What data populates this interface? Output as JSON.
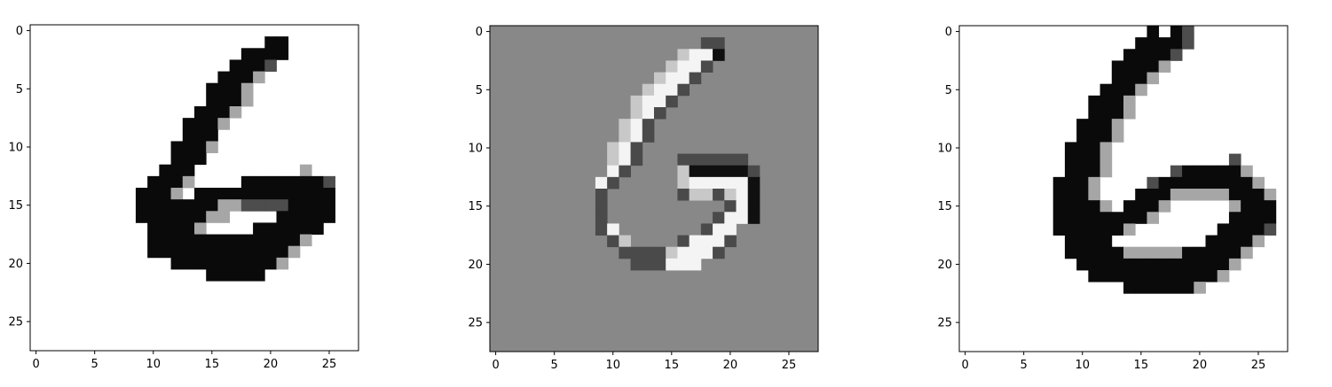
{
  "chart_data": [
    {
      "type": "heatmap",
      "title": "",
      "xlabel": "",
      "ylabel": "",
      "colormap": "gray_r",
      "grid": false,
      "xlim": [
        -0.5,
        27.5
      ],
      "ylim": [
        27.5,
        -0.5
      ],
      "xticks": [
        "0",
        "5",
        "10",
        "15",
        "20",
        "25"
      ],
      "yticks": [
        "0",
        "5",
        "10",
        "15",
        "20",
        "25"
      ],
      "vmin": 0,
      "vmax": 1,
      "rows": [
        "............................",
        "....................rr......",
        "..................rrrr......",
        ".................rrra.......",
        "................rrrb........",
        "...............rrrb.........",
        "...............rrrb.........",
        "..............rrrb..........",
        ".............rrrb...........",
        ".............rrr............",
        "............rrrb............",
        "............rrr.............",
        "...........rrr.........b....",
        "..........rrrb....rrrrrrra..",
        ".........rrrb.rrrrrrrrrrrr..",
        ".........rrrrrrrbbaaaarrrr..",
        ".........rrrrrrbb....rrrrr..",
        "..........rrrrb....rrrrrr...",
        "..........rrrrrrrrrrrrrb....",
        "..........rrrrrrrrrrrrb.....",
        "............rrrrrrrrrb......",
        "...............rrrrr........",
        "............................",
        "............................",
        "............................",
        "............................",
        "............................",
        "............................"
      ]
    },
    {
      "type": "heatmap",
      "title": "",
      "xlabel": "",
      "ylabel": "",
      "colormap": "gray_r",
      "grid": false,
      "xlim": [
        -0.5,
        27.5
      ],
      "ylim": [
        27.5,
        -0.5
      ],
      "xticks": [
        "0",
        "5",
        "10",
        "15",
        "20",
        "25"
      ],
      "yticks": [
        "0",
        "5",
        "10",
        "15",
        "20",
        "25"
      ],
      "vmin": -1,
      "vmax": 1,
      "background": 0,
      "rows": [
        "............................",
        "..................dd........",
        "................lLLD........",
        "...............lLLd.........",
        "..............lLLd..........",
        ".............lLLd...........",
        "............lLLd............",
        "............lLd.............",
        "...........lLd..............",
        "...........lLd..............",
        "..........lLd...............",
        "..........lLd...dddddd......",
        "..........Ld....lDDDDDd.....",
        ".........Ld.....lLLLLLD.....",
        ".........d......dlldlLD.....",
        ".........d..........dLD.....",
        ".........d.........dLLD.....",
        ".........dL.......dLL.......",
        "..........dl....dLLLd.......",
        "...........ddddlLLLd........",
        "............dddLLL..........",
        "............................",
        "............................",
        "............................",
        "............................",
        "............................",
        "............................",
        "............................"
      ]
    },
    {
      "type": "heatmap",
      "title": "",
      "xlabel": "",
      "ylabel": "",
      "colormap": "gray_r",
      "grid": false,
      "xlim": [
        -0.5,
        27.5
      ],
      "ylim": [
        27.5,
        -0.5
      ],
      "xticks": [
        "0",
        "5",
        "10",
        "15",
        "20",
        "25"
      ],
      "yticks": [
        "0",
        "5",
        "10",
        "15",
        "20",
        "25"
      ],
      "vmin": 0,
      "vmax": 1,
      "rows": [
        "................r.ra........",
        "...............rrrra........",
        "..............rrrra.........",
        ".............rrrrb..........",
        ".............rrrb...........",
        "............rrrb............",
        "...........rrrb.............",
        "...........rrrb.............",
        "..........rrrb..............",
        "..........rrrb..............",
        ".........rrrb...............",
        ".........rrrb..........a....",
        ".........rrrb.....arrrrrb...",
        "........rrrb....arrrrrrrrb..",
        "........rrrb...rrrbbbbbrrrb.",
        "........rrrrb.rrrb.....brrr.",
        "........rrrrrrrrb......rrrr.",
        "........rrrrrrb.......rrrra.",
        ".........rrrr........rrrrb..",
        ".........rrrrrbbbbbrrrrrb...",
        "..........rrrrrrrrrrrrrb....",
        "...........rrrrrrrrrrrb.....",
        "..............rrrrrrb.......",
        "............................",
        "............................",
        "............................",
        "............................",
        "............................"
      ]
    }
  ],
  "palette": {
    ".": "#ffffff",
    "r": "#0a0a0a",
    "a": "#4d4d4d",
    "b": "#a6a6a6",
    "d": "#4a4a4a",
    "D": "#101010",
    "l": "#c8c8c8",
    "L": "#f4f4f4",
    "middle_background": "#888888",
    "axis": "#000000"
  }
}
